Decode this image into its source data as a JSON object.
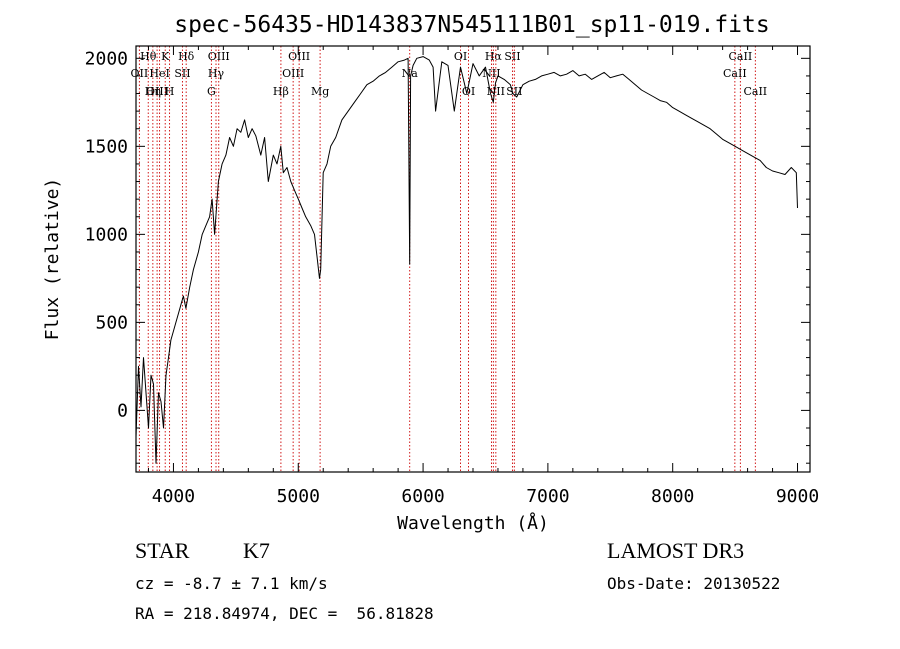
{
  "chart_data": {
    "type": "line",
    "title": "spec-56435-HD143837N545111B01_sp11-019.fits",
    "xlabel": "Wavelength (Å)",
    "ylabel": "Flux (relative)",
    "xlim": [
      3700,
      9100
    ],
    "ylim": [
      -350,
      2070
    ],
    "xticks": [
      4000,
      5000,
      6000,
      7000,
      8000,
      9000
    ],
    "yticks": [
      0,
      500,
      1000,
      1500,
      2000
    ],
    "grid": false,
    "series": [
      {
        "x": [
          3700,
          3720,
          3740,
          3760,
          3780,
          3800,
          3820,
          3840,
          3860,
          3880,
          3900,
          3920,
          3940,
          3960,
          3980,
          4000,
          4020,
          4040,
          4060,
          4080,
          4100,
          4130,
          4160,
          4200,
          4230,
          4260,
          4290,
          4310,
          4330,
          4360,
          4390,
          4420,
          4450,
          4480,
          4510,
          4540,
          4570,
          4600,
          4630,
          4660,
          4700,
          4730,
          4760,
          4800,
          4830,
          4860,
          4880,
          4910,
          4940,
          4970,
          5000,
          5030,
          5060,
          5100,
          5130,
          5170,
          5180,
          5200,
          5230,
          5260,
          5300,
          5350,
          5400,
          5450,
          5500,
          5550,
          5600,
          5650,
          5700,
          5750,
          5800,
          5850,
          5880,
          5893,
          5900,
          5920,
          5950,
          6000,
          6050,
          6080,
          6100,
          6150,
          6200,
          6250,
          6300,
          6350,
          6400,
          6450,
          6500,
          6540,
          6563,
          6580,
          6600,
          6650,
          6700,
          6720,
          6750,
          6800,
          6850,
          6900,
          6950,
          7000,
          7050,
          7100,
          7150,
          7200,
          7250,
          7300,
          7350,
          7400,
          7450,
          7500,
          7550,
          7600,
          7650,
          7700,
          7750,
          7800,
          7850,
          7900,
          7950,
          8000,
          8050,
          8100,
          8150,
          8200,
          8250,
          8300,
          8350,
          8400,
          8450,
          8500,
          8550,
          8600,
          8650,
          8700,
          8750,
          8800,
          8850,
          8900,
          8950,
          8990,
          9000
        ],
        "y": [
          -150,
          250,
          20,
          300,
          100,
          -100,
          200,
          150,
          -300,
          100,
          50,
          -100,
          200,
          300,
          400,
          450,
          500,
          550,
          600,
          650,
          580,
          700,
          800,
          900,
          1000,
          1050,
          1100,
          1200,
          1000,
          1300,
          1400,
          1450,
          1550,
          1500,
          1600,
          1580,
          1650,
          1550,
          1600,
          1560,
          1450,
          1550,
          1300,
          1450,
          1400,
          1500,
          1350,
          1380,
          1300,
          1250,
          1200,
          1150,
          1100,
          1050,
          1000,
          750,
          800,
          1350,
          1400,
          1500,
          1550,
          1650,
          1700,
          1750,
          1800,
          1850,
          1870,
          1900,
          1920,
          1950,
          1980,
          1990,
          2000,
          830,
          1900,
          1960,
          2000,
          2010,
          1990,
          1950,
          1700,
          1980,
          1960,
          1700,
          1950,
          1800,
          1970,
          1900,
          1950,
          1800,
          1750,
          1860,
          1900,
          1880,
          1850,
          1800,
          1780,
          1850,
          1870,
          1880,
          1900,
          1910,
          1920,
          1900,
          1910,
          1930,
          1900,
          1910,
          1880,
          1900,
          1920,
          1890,
          1900,
          1910,
          1880,
          1850,
          1820,
          1800,
          1780,
          1760,
          1750,
          1720,
          1700,
          1680,
          1660,
          1640,
          1620,
          1600,
          1570,
          1540,
          1520,
          1500,
          1480,
          1460,
          1440,
          1420,
          1380,
          1360,
          1350,
          1340,
          1380,
          1350,
          1150
        ]
      }
    ],
    "line_labels": [
      {
        "label": "Hθ",
        "x": 3798,
        "row": 0
      },
      {
        "label": "OII",
        "x": 3727,
        "row": 1
      },
      {
        "label": "OIII",
        "x": 3869,
        "row": 2
      },
      {
        "label": "K",
        "x": 3934,
        "row": 0
      },
      {
        "label": "HeI",
        "x": 3889,
        "row": 1
      },
      {
        "label": "Hη",
        "x": 3835,
        "row": 2
      },
      {
        "label": "H",
        "x": 3969,
        "row": 2
      },
      {
        "label": "Hδ",
        "x": 4102,
        "row": 0
      },
      {
        "label": "SII",
        "x": 4072,
        "row": 1
      },
      {
        "label": "OIII",
        "x": 4363,
        "row": 0
      },
      {
        "label": "Hγ",
        "x": 4341,
        "row": 1
      },
      {
        "label": "G",
        "x": 4304,
        "row": 2
      },
      {
        "label": "Hβ",
        "x": 4861,
        "row": 2
      },
      {
        "label": "OIII",
        "x": 5007,
        "row": 0
      },
      {
        "label": "OIII",
        "x": 4959,
        "row": 1
      },
      {
        "label": "Mg",
        "x": 5175,
        "row": 2
      },
      {
        "label": "Na",
        "x": 5893,
        "row": 1
      },
      {
        "label": "OI",
        "x": 6300,
        "row": 0
      },
      {
        "label": "OI",
        "x": 6364,
        "row": 2
      },
      {
        "label": "Hα",
        "x": 6563,
        "row": 0
      },
      {
        "label": "NII",
        "x": 6548,
        "row": 1
      },
      {
        "label": "NII",
        "x": 6583,
        "row": 2
      },
      {
        "label": "SII",
        "x": 6716,
        "row": 0
      },
      {
        "label": "SII",
        "x": 6731,
        "row": 2
      },
      {
        "label": "CaII",
        "x": 8542,
        "row": 0
      },
      {
        "label": "CaII",
        "x": 8498,
        "row": 1
      },
      {
        "label": "CaII",
        "x": 8662,
        "row": 2
      }
    ]
  },
  "info": {
    "object_class": "STAR",
    "subclass": "K7",
    "survey": "LAMOST DR3",
    "cz": "cz = -8.7 ± 7.1 km/s",
    "obs_date": "Obs-Date: 20130522",
    "coords": "RA = 218.84974, DEC =  56.81828"
  },
  "colors": {
    "spectrum": "#000000",
    "line_markers": "#cc0000",
    "axes": "#000000",
    "background": "#ffffff"
  }
}
